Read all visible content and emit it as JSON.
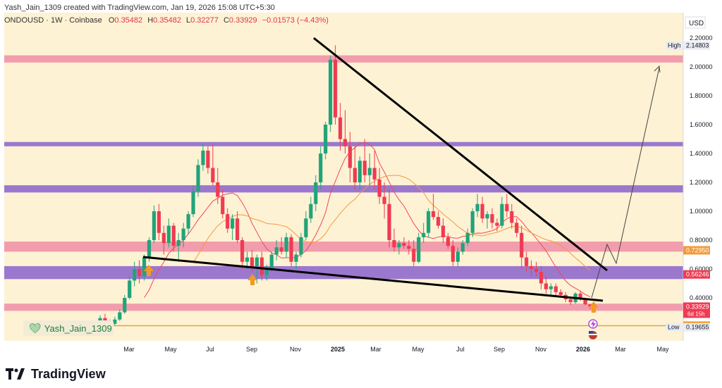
{
  "header": {
    "credit": "Yash_Jain_1309 created with TradingView.com, Jan 19, 2026 15:08 UTC+5:30",
    "symbol": "ONDOUSD · 1W · Coinbase",
    "o_label": "O",
    "o_val": "0.35482",
    "h_label": "H",
    "h_val": "0.35482",
    "l_label": "L",
    "l_val": "0.32277",
    "c_label": "C",
    "c_val": "0.33929",
    "change": "−0.01573 (−4.43%)"
  },
  "axis": {
    "currency": "USD"
  },
  "badge": {
    "author": "Yash_Jain_1309"
  },
  "brand": {
    "name": "TradingView"
  },
  "chart_data": {
    "type": "candlestick",
    "title": "ONDOUSD · 1W · Coinbase",
    "x_ticks": [
      "Mar",
      "May",
      "Jul",
      "Sep",
      "Nov",
      "2025",
      "Mar",
      "May",
      "Jul",
      "Sep",
      "Nov",
      "2026",
      "Mar",
      "May"
    ],
    "y_ticks": [
      "2.20000",
      "2.00000",
      "1.80000",
      "1.60000",
      "1.40000",
      "1.20000",
      "1.00000",
      "0.80000",
      "0.60000",
      "0.40000"
    ],
    "ylim": [
      0.16,
      2.28
    ],
    "price_labels": [
      {
        "name": "High",
        "value": "2.14803"
      },
      {
        "name": "ma",
        "value": "0.72950"
      },
      {
        "name": "ma2",
        "value": "0.56246"
      },
      {
        "name": "last",
        "value": "0.33929",
        "sub": "6d 15h"
      },
      {
        "name": "support",
        "value": "0.20753"
      },
      {
        "name": "Low",
        "value": "0.19655"
      }
    ],
    "zones": [
      {
        "color": "pink",
        "from": 2.03,
        "to": 2.08
      },
      {
        "color": "purple",
        "from": 1.45,
        "to": 1.48
      },
      {
        "color": "purple",
        "from": 1.13,
        "to": 1.18
      },
      {
        "color": "pink",
        "from": 0.72,
        "to": 0.79
      },
      {
        "color": "purple",
        "from": 0.53,
        "to": 0.62
      },
      {
        "color": "pink",
        "from": 0.31,
        "to": 0.36
      }
    ],
    "support_level": 0.2075,
    "candles": [
      [
        0.22,
        0.28,
        0.2,
        0.26
      ],
      [
        0.26,
        0.29,
        0.22,
        0.23
      ],
      [
        0.23,
        0.25,
        0.2,
        0.22
      ],
      [
        0.22,
        0.27,
        0.21,
        0.25
      ],
      [
        0.25,
        0.32,
        0.24,
        0.3
      ],
      [
        0.3,
        0.42,
        0.29,
        0.4
      ],
      [
        0.4,
        0.55,
        0.39,
        0.52
      ],
      [
        0.52,
        0.65,
        0.48,
        0.6
      ],
      [
        0.6,
        0.66,
        0.5,
        0.55
      ],
      [
        0.55,
        0.7,
        0.52,
        0.68
      ],
      [
        0.68,
        0.82,
        0.65,
        0.8
      ],
      [
        0.8,
        1.04,
        0.78,
        1.0
      ],
      [
        1.0,
        1.05,
        0.8,
        0.85
      ],
      [
        0.85,
        0.9,
        0.7,
        0.78
      ],
      [
        0.78,
        0.95,
        0.75,
        0.9
      ],
      [
        0.9,
        0.92,
        0.72,
        0.76
      ],
      [
        0.76,
        0.85,
        0.65,
        0.8
      ],
      [
        0.8,
        0.92,
        0.75,
        0.88
      ],
      [
        0.88,
        1.0,
        0.84,
        0.98
      ],
      [
        0.98,
        1.18,
        0.96,
        1.14
      ],
      [
        1.14,
        1.36,
        1.1,
        1.32
      ],
      [
        1.32,
        1.47,
        1.28,
        1.42
      ],
      [
        1.42,
        1.45,
        1.26,
        1.3
      ],
      [
        1.3,
        1.47,
        1.18,
        1.2
      ],
      [
        1.2,
        1.3,
        1.05,
        1.1
      ],
      [
        1.1,
        1.15,
        0.95,
        0.98
      ],
      [
        0.98,
        1.02,
        0.85,
        0.88
      ],
      [
        0.88,
        0.98,
        0.8,
        0.95
      ],
      [
        0.95,
        1.0,
        0.78,
        0.8
      ],
      [
        0.8,
        0.82,
        0.6,
        0.65
      ],
      [
        0.65,
        0.72,
        0.6,
        0.68
      ],
      [
        0.68,
        0.73,
        0.58,
        0.62
      ],
      [
        0.62,
        0.7,
        0.5,
        0.68
      ],
      [
        0.68,
        0.72,
        0.52,
        0.56
      ],
      [
        0.56,
        0.63,
        0.52,
        0.6
      ],
      [
        0.6,
        0.72,
        0.58,
        0.7
      ],
      [
        0.7,
        0.8,
        0.66,
        0.75
      ],
      [
        0.75,
        0.82,
        0.7,
        0.72
      ],
      [
        0.72,
        0.85,
        0.68,
        0.82
      ],
      [
        0.82,
        0.84,
        0.62,
        0.65
      ],
      [
        0.65,
        0.72,
        0.6,
        0.7
      ],
      [
        0.7,
        0.85,
        0.68,
        0.82
      ],
      [
        0.82,
        1.0,
        0.8,
        0.95
      ],
      [
        0.95,
        1.1,
        0.92,
        1.05
      ],
      [
        1.05,
        1.25,
        1.0,
        1.2
      ],
      [
        1.2,
        1.45,
        1.15,
        1.4
      ],
      [
        1.4,
        1.62,
        1.36,
        1.6
      ],
      [
        1.6,
        2.08,
        1.55,
        2.05
      ],
      [
        2.05,
        2.15,
        1.6,
        1.65
      ],
      [
        1.65,
        1.75,
        1.42,
        1.5
      ],
      [
        1.5,
        1.7,
        1.4,
        1.45
      ],
      [
        1.45,
        1.55,
        1.2,
        1.3
      ],
      [
        1.3,
        1.45,
        1.15,
        1.2
      ],
      [
        1.2,
        1.38,
        1.15,
        1.35
      ],
      [
        1.35,
        1.5,
        1.2,
        1.25
      ],
      [
        1.25,
        1.4,
        1.18,
        1.3
      ],
      [
        1.3,
        1.42,
        1.15,
        1.22
      ],
      [
        1.22,
        1.3,
        1.05,
        1.1
      ],
      [
        1.1,
        1.2,
        0.95,
        1.05
      ],
      [
        1.05,
        1.15,
        0.75,
        0.8
      ],
      [
        0.8,
        0.88,
        0.72,
        0.75
      ],
      [
        0.75,
        0.8,
        0.7,
        0.78
      ],
      [
        0.78,
        0.82,
        0.74,
        0.76
      ],
      [
        0.76,
        0.8,
        0.7,
        0.74
      ],
      [
        0.74,
        0.8,
        0.62,
        0.65
      ],
      [
        0.65,
        0.85,
        0.64,
        0.82
      ],
      [
        0.82,
        0.92,
        0.78,
        0.85
      ],
      [
        0.85,
        1.02,
        0.82,
        1.0
      ],
      [
        1.0,
        1.12,
        0.94,
        0.96
      ],
      [
        0.96,
        1.0,
        0.88,
        0.9
      ],
      [
        0.9,
        0.95,
        0.78,
        0.82
      ],
      [
        0.82,
        0.85,
        0.74,
        0.76
      ],
      [
        0.76,
        0.8,
        0.62,
        0.65
      ],
      [
        0.65,
        0.75,
        0.62,
        0.72
      ],
      [
        0.72,
        0.8,
        0.7,
        0.78
      ],
      [
        0.78,
        0.88,
        0.76,
        0.85
      ],
      [
        0.85,
        1.02,
        0.82,
        1.0
      ],
      [
        1.0,
        1.12,
        0.96,
        1.05
      ],
      [
        1.05,
        1.1,
        0.92,
        0.95
      ],
      [
        0.95,
        1.0,
        0.88,
        0.98
      ],
      [
        0.98,
        1.02,
        0.88,
        0.92
      ],
      [
        0.92,
        0.95,
        0.86,
        0.9
      ],
      [
        0.9,
        1.1,
        0.88,
        1.05
      ],
      [
        1.05,
        1.12,
        0.96,
        1.0
      ],
      [
        1.0,
        1.05,
        0.88,
        0.92
      ],
      [
        0.92,
        0.95,
        0.82,
        0.85
      ],
      [
        0.85,
        0.9,
        0.6,
        0.68
      ],
      [
        0.68,
        0.72,
        0.58,
        0.62
      ],
      [
        0.62,
        0.66,
        0.55,
        0.6
      ],
      [
        0.6,
        0.65,
        0.55,
        0.58
      ],
      [
        0.58,
        0.62,
        0.46,
        0.5
      ],
      [
        0.5,
        0.55,
        0.43,
        0.46
      ],
      [
        0.46,
        0.5,
        0.42,
        0.48
      ],
      [
        0.48,
        0.5,
        0.41,
        0.44
      ],
      [
        0.44,
        0.46,
        0.4,
        0.42
      ],
      [
        0.42,
        0.44,
        0.37,
        0.39
      ],
      [
        0.39,
        0.4,
        0.35,
        0.37
      ],
      [
        0.37,
        0.44,
        0.36,
        0.43
      ],
      [
        0.43,
        0.45,
        0.38,
        0.39
      ],
      [
        0.39,
        0.4,
        0.35,
        0.355
      ],
      [
        0.35482,
        0.35482,
        0.32277,
        0.33929
      ]
    ]
  }
}
